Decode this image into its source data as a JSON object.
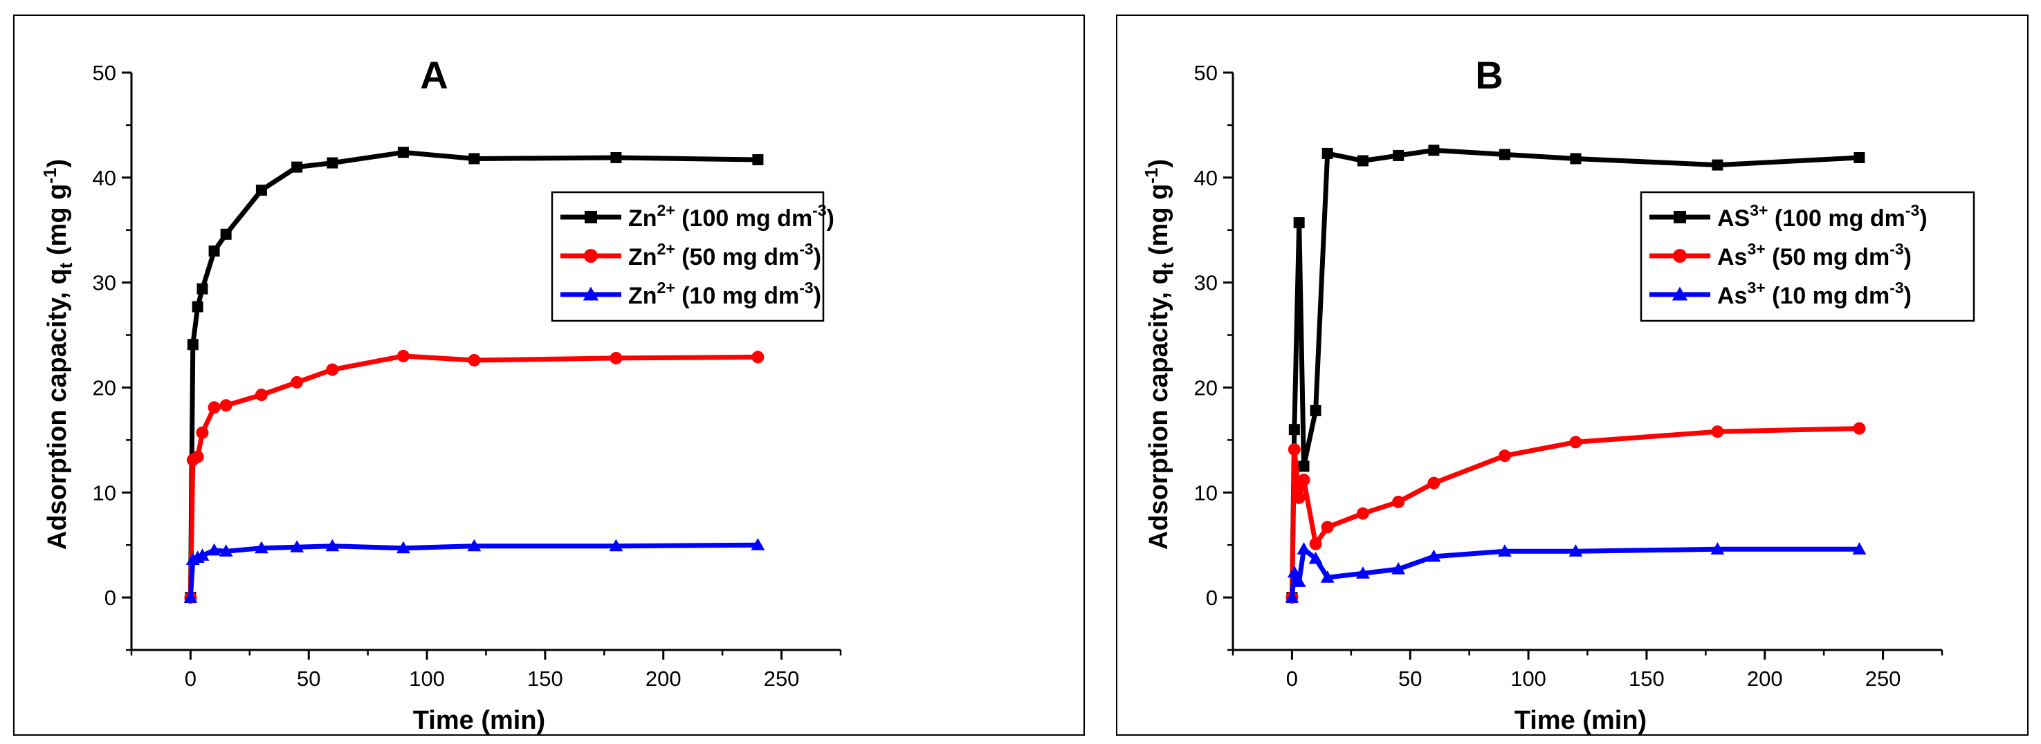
{
  "chart_data": [
    {
      "panel": "A",
      "type": "line",
      "title": "A",
      "xlabel": "Time (min)",
      "ylabel": "Adsorption capacity, q",
      "ylabel_sub": "t",
      "ylabel_unit": " (mg g",
      "ylabel_sup": "-1",
      "ylabel_close": ")",
      "xlim": [
        -25,
        275
      ],
      "ylim": [
        -5,
        50
      ],
      "xticks": [
        0,
        50,
        100,
        150,
        200,
        250
      ],
      "yticks": [
        0,
        10,
        20,
        30,
        40,
        50
      ],
      "xtick_labels": [
        "0",
        "50",
        "100",
        "150",
        "200",
        "250"
      ],
      "ytick_labels": [
        "0",
        "10",
        "20",
        "30",
        "40",
        "50"
      ],
      "legend_position": "upper-right",
      "series": [
        {
          "name": "Zn2+ (100 mg dm-3)",
          "ion": "Zn",
          "ion_sup": "2+",
          "conc": " (100 mg dm",
          "conc_sup": "-3",
          "conc_close": ")",
          "color": "#000000",
          "marker": "square",
          "x": [
            0,
            1,
            3,
            5,
            10,
            15,
            30,
            45,
            60,
            90,
            120,
            180,
            240
          ],
          "y": [
            0,
            24.1,
            27.7,
            29.4,
            33.0,
            34.6,
            38.8,
            41.0,
            41.4,
            42.4,
            41.8,
            41.9,
            41.7
          ]
        },
        {
          "name": "Zn2+ (50 mg dm-3)",
          "ion": "Zn",
          "ion_sup": "2+",
          "conc": " (50 mg dm",
          "conc_sup": "-3",
          "conc_close": ")",
          "color": "#ff0000",
          "marker": "circle",
          "x": [
            0,
            1,
            3,
            5,
            10,
            15,
            30,
            45,
            60,
            90,
            120,
            180,
            240
          ],
          "y": [
            0,
            13.1,
            13.4,
            15.7,
            18.1,
            18.3,
            19.3,
            20.5,
            21.7,
            23.0,
            22.6,
            22.8,
            22.9
          ]
        },
        {
          "name": "Zn2+ (10 mg dm-3)",
          "ion": "Zn",
          "ion_sup": "2+",
          "conc": " (10 mg dm",
          "conc_sup": "-3",
          "conc_close": ")",
          "color": "#0000ff",
          "marker": "triangle",
          "x": [
            0,
            1,
            3,
            5,
            10,
            15,
            30,
            45,
            60,
            90,
            120,
            180,
            240
          ],
          "y": [
            0,
            3.6,
            3.8,
            4.0,
            4.5,
            4.4,
            4.7,
            4.8,
            4.9,
            4.7,
            4.9,
            4.9,
            5.0
          ]
        }
      ]
    },
    {
      "panel": "B",
      "type": "line",
      "title": "B",
      "xlabel": "Time (min)",
      "ylabel": "Adsorption capacity, q",
      "ylabel_sub": "t",
      "ylabel_unit": " (mg g",
      "ylabel_sup": "-1",
      "ylabel_close": ")",
      "xlim": [
        -25,
        275
      ],
      "ylim": [
        -5,
        50
      ],
      "xticks": [
        0,
        50,
        100,
        150,
        200,
        250
      ],
      "yticks": [
        0,
        10,
        20,
        30,
        40,
        50
      ],
      "xtick_labels": [
        "0",
        "50",
        "100",
        "150",
        "200",
        "250"
      ],
      "ytick_labels": [
        "0",
        "10",
        "20",
        "30",
        "40",
        "50"
      ],
      "legend_position": "upper-right",
      "series": [
        {
          "name": "AS3+ (100 mg dm-3)",
          "ion": "AS",
          "ion_sup": "3+",
          "conc": " (100 mg dm",
          "conc_sup": "-3",
          "conc_close": ")",
          "color": "#000000",
          "marker": "square",
          "x": [
            0,
            1,
            3,
            5,
            10,
            15,
            30,
            45,
            60,
            90,
            120,
            180,
            240
          ],
          "y": [
            0,
            16.0,
            35.7,
            12.5,
            17.8,
            42.3,
            41.6,
            42.1,
            42.6,
            42.2,
            41.8,
            41.2,
            41.9
          ]
        },
        {
          "name": "As3+ (50 mg dm-3)",
          "ion": "As",
          "ion_sup": "3+",
          "conc": " (50 mg dm",
          "conc_sup": "-3",
          "conc_close": ")",
          "color": "#ff0000",
          "marker": "circle",
          "x": [
            0,
            1,
            3,
            5,
            10,
            15,
            30,
            45,
            60,
            90,
            120,
            180,
            240
          ],
          "y": [
            0,
            14.1,
            9.5,
            11.2,
            5.1,
            6.7,
            8.0,
            9.1,
            10.9,
            13.5,
            14.8,
            15.8,
            16.1
          ]
        },
        {
          "name": "As3+ (10 mg dm-3)",
          "ion": "As",
          "ion_sup": "3+",
          "conc": " (10 mg dm",
          "conc_sup": "-3",
          "conc_close": ")",
          "color": "#0000ff",
          "marker": "triangle",
          "x": [
            0,
            1,
            3,
            5,
            10,
            15,
            30,
            45,
            60,
            90,
            120,
            180,
            240
          ],
          "y": [
            0,
            2.4,
            1.5,
            4.6,
            3.7,
            1.9,
            2.3,
            2.7,
            3.9,
            4.4,
            4.4,
            4.6,
            4.6
          ]
        }
      ]
    }
  ]
}
